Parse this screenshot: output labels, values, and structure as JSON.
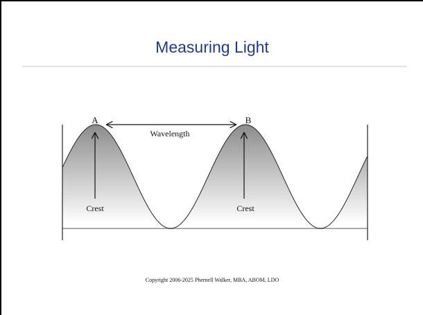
{
  "title": "Measuring Light",
  "diagram": {
    "label_a": "A",
    "label_b": "B",
    "wavelength": "Wavelength",
    "crest_left": "Crest",
    "crest_right": "Crest"
  },
  "footer": "Copyright 2006-2025 Phernell Walker, MBA, ABOM, LDO"
}
